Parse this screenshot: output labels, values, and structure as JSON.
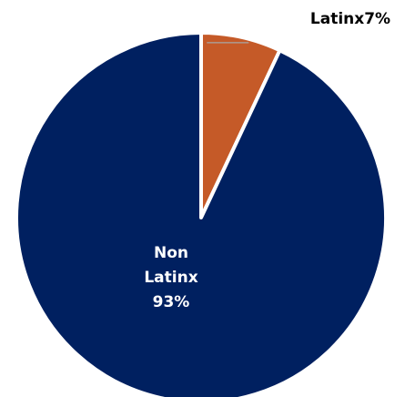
{
  "chart_data": {
    "type": "pie",
    "slices": [
      {
        "label": "Latinx",
        "value": 7,
        "value_label": "7%",
        "color": "#c55a28",
        "label_lines": [
          "Latinx7%"
        ]
      },
      {
        "label": "Non Latinx",
        "value": 93,
        "value_label": "93%",
        "color": "#002060",
        "label_lines": [
          "Non",
          "Latinx",
          "93%"
        ]
      }
    ],
    "start": "12 o'clock",
    "direction": "clockwise",
    "legend": "none"
  }
}
